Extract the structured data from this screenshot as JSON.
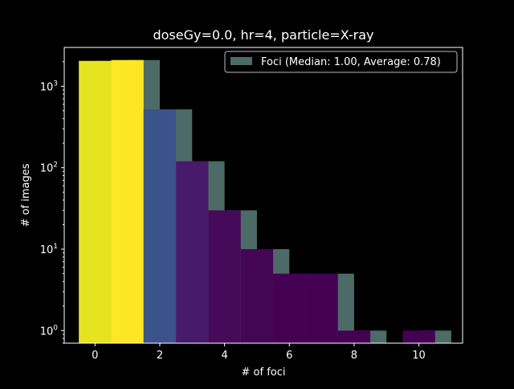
{
  "chart_data": {
    "type": "bar",
    "title": "doseGy=0.0, hr=4, particle=X-ray",
    "xlabel": "# of foci",
    "ylabel": "# of images",
    "xlim": [
      -0.95,
      11.35
    ],
    "ylim": [
      0.7,
      3000
    ],
    "yscale": "log",
    "xticks": [
      0,
      2,
      4,
      6,
      8,
      10
    ],
    "yticks": [
      {
        "value": 1,
        "base": "10",
        "exp": "0"
      },
      {
        "value": 10,
        "base": "10",
        "exp": "1"
      },
      {
        "value": 100,
        "base": "10",
        "exp": "2"
      },
      {
        "value": 1000,
        "base": "10",
        "exp": "3"
      }
    ],
    "background": "#000000",
    "grid": false,
    "legend": {
      "placement": "top-right",
      "label": "Foci (Median: 1.00, Average: 0.78)",
      "color": "#4d6b66"
    },
    "series": [
      {
        "name": "Foci (Median: 1.00, Average: 0.78)",
        "kind": "histogram",
        "color": "#4d6b66",
        "bins": [
          {
            "x0": 0,
            "x1": 1,
            "value": 2050
          },
          {
            "x0": 1,
            "x1": 2,
            "value": 2100
          },
          {
            "x0": 2,
            "x1": 3,
            "value": 520
          },
          {
            "x0": 3,
            "x1": 4,
            "value": 120
          },
          {
            "x0": 4,
            "x1": 5,
            "value": 30
          },
          {
            "x0": 5,
            "x1": 6,
            "value": 10
          },
          {
            "x0": 6,
            "x1": 7,
            "value": 5
          },
          {
            "x0": 7,
            "x1": 8,
            "value": 5
          },
          {
            "x0": 8,
            "x1": 9,
            "value": 1
          },
          {
            "x0": 10,
            "x1": 11,
            "value": 1
          }
        ]
      },
      {
        "kind": "colored-bars",
        "bars": [
          {
            "x0": -0.5,
            "x1": 0.5,
            "value": 2050,
            "color": "#e6e41e"
          },
          {
            "x0": 0.5,
            "x1": 1.5,
            "value": 2100,
            "color": "#fde725"
          },
          {
            "x0": 1.5,
            "x1": 2.5,
            "value": 520,
            "color": "#3b528b"
          },
          {
            "x0": 2.5,
            "x1": 3.5,
            "value": 120,
            "color": "#481a6c"
          },
          {
            "x0": 3.5,
            "x1": 4.5,
            "value": 30,
            "color": "#450b5a"
          },
          {
            "x0": 4.5,
            "x1": 5.5,
            "value": 10,
            "color": "#440654"
          },
          {
            "x0": 5.5,
            "x1": 6.5,
            "value": 5,
            "color": "#440154"
          },
          {
            "x0": 6.5,
            "x1": 7.5,
            "value": 5,
            "color": "#440154"
          },
          {
            "x0": 7.5,
            "x1": 8.5,
            "value": 1,
            "color": "#440154"
          },
          {
            "x0": 9.5,
            "x1": 10.5,
            "value": 1,
            "color": "#440154"
          }
        ]
      }
    ]
  }
}
